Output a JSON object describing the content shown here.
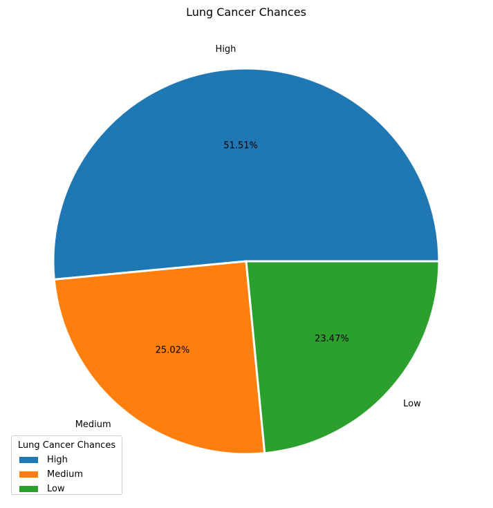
{
  "chart_data": {
    "type": "pie",
    "title": "Lung Cancer Chances",
    "categories": [
      "High",
      "Medium",
      "Low"
    ],
    "values": [
      51.51,
      25.02,
      23.47
    ],
    "value_labels": [
      "51.51%",
      "25.02%",
      "23.47%"
    ],
    "colors": [
      "#1f77b4",
      "#ff7f0e",
      "#2ca02c"
    ],
    "legend": {
      "title": "Lung Cancer Chances",
      "placement": "lower-left",
      "entries": [
        "High",
        "Medium",
        "Low"
      ]
    }
  }
}
